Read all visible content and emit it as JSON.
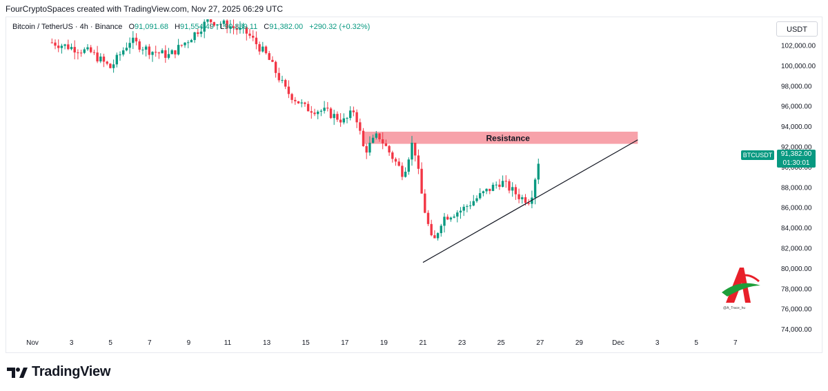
{
  "header": {
    "credit": "FourCryptoSpaces created with TradingView.com, Nov 27, 2025 06:29 UTC"
  },
  "legend": {
    "symbol": "Bitcoin / TetherUS · 4h · Binance",
    "open_label": "O",
    "open": "91,091.68",
    "high_label": "H",
    "high": "91,554.49",
    "low_label": "L",
    "low": "90,889.11",
    "close_label": "C",
    "close": "91,382.00",
    "change": "+290.32 (+0.32%)"
  },
  "currency": "USDT",
  "price_tag": {
    "symbol": "BTCUSDT",
    "price": "91,382.00",
    "countdown": "01:30:01"
  },
  "footer": {
    "brand": "TradingView"
  },
  "colors": {
    "up": "#089981",
    "down": "#f23645",
    "resistance": "#f7a2aa"
  },
  "chart_data": {
    "type": "candlestick",
    "timeframe": "4h",
    "x_axis_labels": [
      "Nov",
      "3",
      "5",
      "7",
      "9",
      "11",
      "13",
      "15",
      "17",
      "19",
      "21",
      "23",
      "25",
      "27",
      "29",
      "Dec",
      "3",
      "5",
      "7"
    ],
    "y_ticks": [
      "102,000.00",
      "100,000.00",
      "98,000.00",
      "96,000.00",
      "94,000.00",
      "92,000.00",
      "90,000.00",
      "88,000.00",
      "86,000.00",
      "84,000.00",
      "82,000.00",
      "80,000.00",
      "78,000.00",
      "76,000.00",
      "74,000.00"
    ],
    "ylim": [
      73500,
      103500
    ],
    "annotations": [
      {
        "type": "zone",
        "label": "Resistance",
        "from_date": "Nov 18",
        "to_date": "Dec 2",
        "low": 92300,
        "high": 93500
      },
      {
        "type": "trendline",
        "from": {
          "date": "Nov 21",
          "price": 80600
        },
        "to": {
          "date": "Dec 2",
          "price": 92700
        }
      }
    ],
    "price_path": [
      {
        "date": "Nov 2",
        "price": 102300
      },
      {
        "date": "Nov 4",
        "price": 101300
      },
      {
        "date": "Nov 5",
        "price": 99800
      },
      {
        "date": "Nov 6",
        "price": 102500
      },
      {
        "date": "Nov 7",
        "price": 101500
      },
      {
        "date": "Nov 8",
        "price": 101000
      },
      {
        "date": "Nov 9",
        "price": 102600
      },
      {
        "date": "Nov 10",
        "price": 104500
      },
      {
        "date": "Nov 11",
        "price": 104000
      },
      {
        "date": "Nov 12",
        "price": 103200
      },
      {
        "date": "Nov 13",
        "price": 101000
      },
      {
        "date": "Nov 14",
        "price": 97500
      },
      {
        "date": "Nov 15",
        "price": 95800
      },
      {
        "date": "Nov 16",
        "price": 95500
      },
      {
        "date": "Nov 17",
        "price": 94500
      },
      {
        "date": "Nov 17.5",
        "price": 95700
      },
      {
        "date": "Nov 18",
        "price": 91500
      },
      {
        "date": "Nov 18.7",
        "price": 93200
      },
      {
        "date": "Nov 19",
        "price": 92300
      },
      {
        "date": "Nov 20",
        "price": 89300
      },
      {
        "date": "Nov 20.5",
        "price": 92700
      },
      {
        "date": "Nov 21",
        "price": 86500
      },
      {
        "date": "Nov 21.5",
        "price": 82300
      },
      {
        "date": "Nov 22",
        "price": 85000
      },
      {
        "date": "Nov 23",
        "price": 85800
      },
      {
        "date": "Nov 24",
        "price": 87300
      },
      {
        "date": "Nov 25",
        "price": 88600
      },
      {
        "date": "Nov 26",
        "price": 87000
      },
      {
        "date": "Nov 26.5",
        "price": 86700
      },
      {
        "date": "Nov 27",
        "price": 91400
      }
    ]
  }
}
